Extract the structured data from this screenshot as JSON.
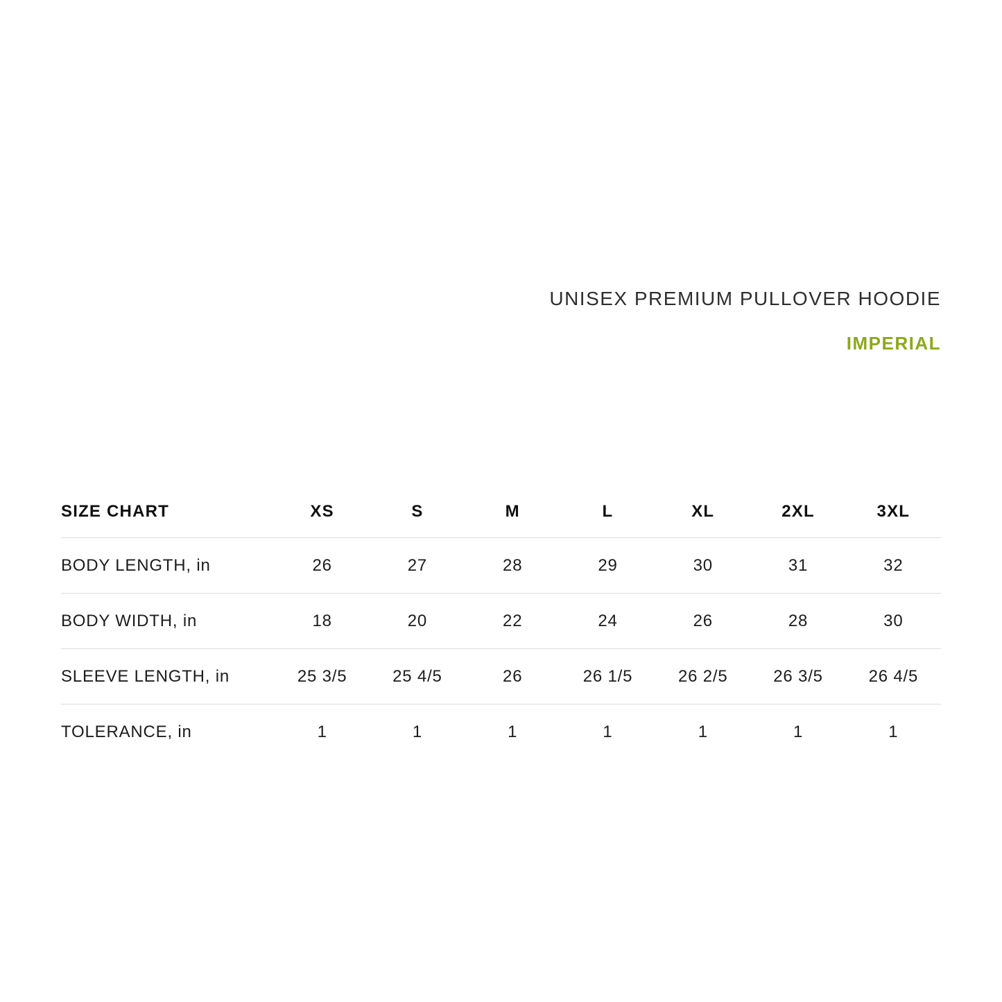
{
  "page": {
    "title": "UNISEX PREMIUM PULLOVER HOODIE",
    "units_label": "IMPERIAL",
    "accent_color": "#8CA81C",
    "divider_color": "#dcdcdc",
    "text_color": "#1c1c1c"
  },
  "chart_data": {
    "type": "table",
    "title": "UNISEX PREMIUM PULLOVER HOODIE",
    "units": "IMPERIAL",
    "columns": [
      "SIZE CHART",
      "XS",
      "S",
      "M",
      "L",
      "XL",
      "2XL",
      "3XL"
    ],
    "rows": [
      {
        "label": "BODY LENGTH, in",
        "values": [
          "26",
          "27",
          "28",
          "29",
          "30",
          "31",
          "32"
        ]
      },
      {
        "label": "BODY WIDTH, in",
        "values": [
          "18",
          "20",
          "22",
          "24",
          "26",
          "28",
          "30"
        ]
      },
      {
        "label": "SLEEVE LENGTH, in",
        "values": [
          "25 3/5",
          "25 4/5",
          "26",
          "26 1/5",
          "26 2/5",
          "26 3/5",
          "26 4/5"
        ]
      },
      {
        "label": "TOLERANCE, in",
        "values": [
          "1",
          "1",
          "1",
          "1",
          "1",
          "1",
          "1"
        ]
      }
    ]
  }
}
